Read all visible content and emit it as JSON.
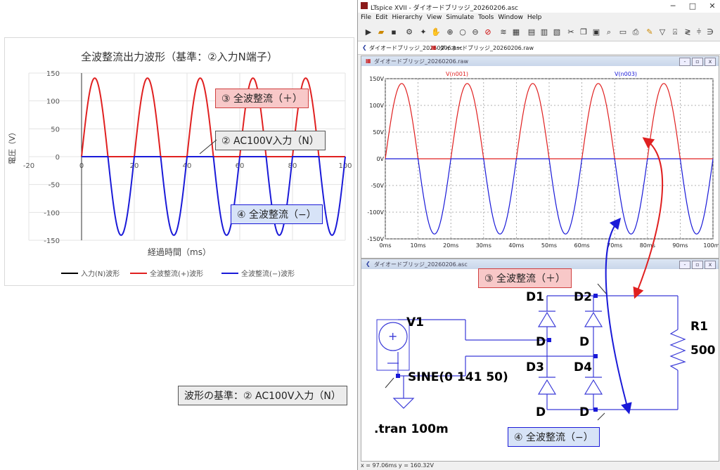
{
  "excel_chart": {
    "title": "全波整流出力波形（基準：②入力N端子）",
    "ylabel": "電圧（V）",
    "xlabel": "経過時間（ms）",
    "yticks": [
      "150",
      "100",
      "50",
      "0",
      "-50",
      "-100",
      "-150"
    ],
    "xticks": [
      "-20",
      "0",
      "20",
      "40",
      "60",
      "80",
      "100"
    ],
    "legend": [
      {
        "label": "入力(N)波形",
        "color": "#000000"
      },
      {
        "label": "全波整流(+)波形",
        "color": "#e02020"
      },
      {
        "label": "全波整流(−)波形",
        "color": "#1a1ad8"
      }
    ]
  },
  "chart_data": {
    "type": "line",
    "title": "全波整流出力波形（基準：②入力N端子）",
    "xlabel": "経過時間（ms）",
    "ylabel": "電圧（V）",
    "xlim": [
      -20,
      100
    ],
    "ylim": [
      -150,
      150
    ],
    "x": [
      0,
      1.25,
      2.5,
      3.75,
      5,
      6.25,
      7.5,
      8.75,
      10,
      11.25,
      12.5,
      13.75,
      15,
      16.25,
      17.5,
      18.75,
      20,
      21.25,
      22.5,
      23.75,
      25,
      26.25,
      27.5,
      28.75,
      30,
      31.25,
      32.5,
      33.75,
      35,
      36.25,
      37.5,
      38.75,
      40,
      41.25,
      42.5,
      43.75,
      45,
      46.25,
      47.5,
      48.75,
      50,
      51.25,
      52.5,
      53.75,
      55,
      56.25,
      57.5,
      58.75,
      60,
      61.25,
      62.5,
      63.75,
      65,
      66.25,
      67.5,
      68.75,
      70,
      71.25,
      72.5,
      73.75,
      75,
      76.25,
      77.5,
      78.75,
      80,
      81.25,
      82.5,
      83.75,
      85,
      86.25,
      87.5,
      88.75,
      90,
      91.25,
      92.5,
      93.75,
      95,
      96.25,
      97.5,
      98.75,
      100
    ],
    "series": [
      {
        "name": "入力(N)波形",
        "color": "#000000",
        "values": [
          0,
          0,
          0,
          0,
          0,
          0,
          0,
          0,
          0,
          0,
          0,
          0,
          0,
          0,
          0,
          0,
          0,
          0,
          0,
          0,
          0,
          0,
          0,
          0,
          0,
          0,
          0,
          0,
          0,
          0,
          0,
          0,
          0,
          0,
          0,
          0,
          0,
          0,
          0,
          0,
          0,
          0,
          0,
          0,
          0,
          0,
          0,
          0,
          0,
          0,
          0,
          0,
          0,
          0,
          0,
          0,
          0,
          0,
          0,
          0,
          0,
          0,
          0,
          0,
          0,
          0,
          0,
          0,
          0,
          0,
          0,
          0,
          0,
          0,
          0,
          0,
          0,
          0,
          0,
          0,
          0
        ]
      },
      {
        "name": "全波整流(+)波形",
        "color": "#e02020",
        "values": [
          0,
          54,
          100,
          130,
          141,
          130,
          100,
          54,
          0,
          0,
          0,
          0,
          0,
          0,
          0,
          0,
          0,
          54,
          100,
          130,
          141,
          130,
          100,
          54,
          0,
          0,
          0,
          0,
          0,
          0,
          0,
          0,
          0,
          54,
          100,
          130,
          141,
          130,
          100,
          54,
          0,
          0,
          0,
          0,
          0,
          0,
          0,
          0,
          0,
          54,
          100,
          130,
          141,
          130,
          100,
          54,
          0,
          0,
          0,
          0,
          0,
          0,
          0,
          0,
          0,
          54,
          100,
          130,
          141,
          130,
          100,
          54,
          0,
          0,
          0,
          0,
          0,
          0,
          0,
          0,
          0
        ]
      },
      {
        "name": "全波整流(−)波形",
        "color": "#1a1ad8",
        "values": [
          0,
          0,
          0,
          0,
          0,
          0,
          0,
          0,
          0,
          -54,
          -100,
          -130,
          -141,
          -130,
          -100,
          -54,
          0,
          0,
          0,
          0,
          0,
          0,
          0,
          0,
          0,
          -54,
          -100,
          -130,
          -141,
          -130,
          -100,
          -54,
          0,
          0,
          0,
          0,
          0,
          0,
          0,
          0,
          0,
          -54,
          -100,
          -130,
          -141,
          -130,
          -100,
          -54,
          0,
          0,
          0,
          0,
          0,
          0,
          0,
          0,
          0,
          -54,
          -100,
          -130,
          -141,
          -130,
          -100,
          -54,
          0,
          0,
          0,
          0,
          0,
          0,
          0,
          0,
          0,
          -54,
          -100,
          -130,
          -141,
          -130,
          -100,
          -54,
          0
        ]
      }
    ]
  },
  "callouts": {
    "plus": "③ 全波整流（＋）",
    "ac_input": "② AC100V入力（N）",
    "minus": "④ 全波整流（−）",
    "reference": "波形の基準：② AC100V入力（N）",
    "sch_plus": "③ 全波整流（＋）",
    "sch_minus": "④ 全波整流（−）"
  },
  "ltspice": {
    "window_title": "LTspice XVII - ダイオードブリッジ_20260206.asc",
    "menu": [
      "File",
      "Edit",
      "Hierarchy",
      "View",
      "Simulate",
      "Tools",
      "Window",
      "Help"
    ],
    "tabs": [
      "ダイオードブリッジ_20260206.asc",
      "ダイオードブリッジ_20260206.raw"
    ],
    "plot_pane_title": "ダイオードブリッジ_20260206.raw",
    "schematic_pane_title": "ダイオードブリッジ_20260206.asc",
    "trace_labels": [
      {
        "label": "V(n001)",
        "color": "#e02020"
      },
      {
        "label": "V(n003)",
        "color": "#1a1ad8"
      }
    ],
    "yticks": [
      "150V",
      "100V",
      "50V",
      "0V",
      "-50V",
      "-100V",
      "-150V"
    ],
    "xticks": [
      "0ms",
      "10ms",
      "20ms",
      "30ms",
      "40ms",
      "50ms",
      "60ms",
      "70ms",
      "80ms",
      "90ms",
      "100ms"
    ],
    "schematic": {
      "v1": "V1",
      "source_value": "SINE(0 141 50)",
      "tran": ".tran 100m",
      "r1": "R1",
      "r1_value": "500",
      "d1": "D1",
      "d2": "D2",
      "d3": "D3",
      "d4": "D4",
      "d_model": "D"
    },
    "status": "x = 97.06ms   y = 160.32V"
  }
}
